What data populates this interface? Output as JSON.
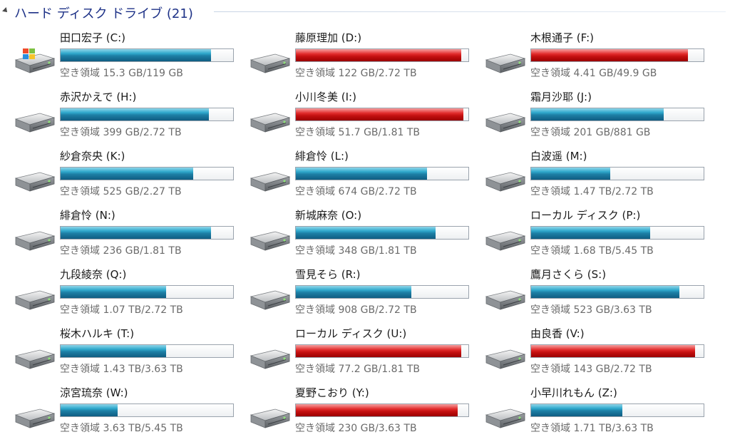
{
  "header": {
    "title": "ハード ディスク ドライブ (21)"
  },
  "colors": {
    "normal": "#1d7fa5",
    "warning": "#c41010",
    "header_text": "#1e3287"
  },
  "drives": [
    {
      "name": "田口宏子 (C:)",
      "free": "空き領域 15.3 GB/119 GB",
      "used_fraction": 0.87,
      "status": "normal",
      "icon": "system-drive-icon"
    },
    {
      "name": "藤原理加 (D:)",
      "free": "空き領域 122 GB/2.72 TB",
      "used_fraction": 0.96,
      "status": "warning",
      "icon": "hard-drive-icon"
    },
    {
      "name": "木根通子 (F:)",
      "free": "空き領域 4.41 GB/49.9 GB",
      "used_fraction": 0.91,
      "status": "warning",
      "icon": "hard-drive-icon"
    },
    {
      "name": "赤沢かえで (H:)",
      "free": "空き領域 399 GB/2.72 TB",
      "used_fraction": 0.86,
      "status": "normal",
      "icon": "hard-drive-icon"
    },
    {
      "name": "小川冬美 (I:)",
      "free": "空き領域 51.7 GB/1.81 TB",
      "used_fraction": 0.97,
      "status": "warning",
      "icon": "hard-drive-icon"
    },
    {
      "name": "霜月沙耶 (J:)",
      "free": "空き領域 201 GB/881 GB",
      "used_fraction": 0.77,
      "status": "normal",
      "icon": "hard-drive-icon"
    },
    {
      "name": "紗倉奈央 (K:)",
      "free": "空き領域 525 GB/2.27 TB",
      "used_fraction": 0.77,
      "status": "normal",
      "icon": "hard-drive-icon"
    },
    {
      "name": "緋倉怜 (L:)",
      "free": "空き領域 674 GB/2.72 TB",
      "used_fraction": 0.76,
      "status": "normal",
      "icon": "hard-drive-icon"
    },
    {
      "name": "白波遥 (M:)",
      "free": "空き領域 1.47 TB/2.72 TB",
      "used_fraction": 0.46,
      "status": "normal",
      "icon": "hard-drive-icon"
    },
    {
      "name": "緋倉怜 (N:)",
      "free": "空き領域 236 GB/1.81 TB",
      "used_fraction": 0.87,
      "status": "normal",
      "icon": "hard-drive-icon"
    },
    {
      "name": "新城麻奈 (O:)",
      "free": "空き領域 348 GB/1.81 TB",
      "used_fraction": 0.81,
      "status": "normal",
      "icon": "hard-drive-icon"
    },
    {
      "name": "ローカル ディスク (P:)",
      "free": "空き領域 1.68 TB/5.45 TB",
      "used_fraction": 0.69,
      "status": "normal",
      "icon": "hard-drive-icon"
    },
    {
      "name": "九段綾奈 (Q:)",
      "free": "空き領域 1.07 TB/2.72 TB",
      "used_fraction": 0.61,
      "status": "normal",
      "icon": "hard-drive-icon"
    },
    {
      "name": "雪見そら (R:)",
      "free": "空き領域 908 GB/2.72 TB",
      "used_fraction": 0.67,
      "status": "normal",
      "icon": "hard-drive-icon"
    },
    {
      "name": "鷹月さくら (S:)",
      "free": "空き領域 523 GB/3.63 TB",
      "used_fraction": 0.86,
      "status": "normal",
      "icon": "hard-drive-icon"
    },
    {
      "name": "桜木ハルキ (T:)",
      "free": "空き領域 1.43 TB/3.63 TB",
      "used_fraction": 0.61,
      "status": "normal",
      "icon": "hard-drive-icon"
    },
    {
      "name": "ローカル ディスク (U:)",
      "free": "空き領域 77.2 GB/1.81 TB",
      "used_fraction": 0.96,
      "status": "warning",
      "icon": "hard-drive-icon"
    },
    {
      "name": "由良香 (V:)",
      "free": "空き領域 143 GB/2.72 TB",
      "used_fraction": 0.95,
      "status": "warning",
      "icon": "hard-drive-icon"
    },
    {
      "name": "涼宮琉奈 (W:)",
      "free": "空き領域 3.63 TB/5.45 TB",
      "used_fraction": 0.33,
      "status": "normal",
      "icon": "hard-drive-icon"
    },
    {
      "name": "夏野こおり (Y:)",
      "free": "空き領域 230 GB/3.63 TB",
      "used_fraction": 0.94,
      "status": "warning",
      "icon": "hard-drive-icon"
    },
    {
      "name": "小早川れもん (Z:)",
      "free": "空き領域 1.71 TB/3.63 TB",
      "used_fraction": 0.53,
      "status": "normal",
      "icon": "hard-drive-icon"
    }
  ]
}
